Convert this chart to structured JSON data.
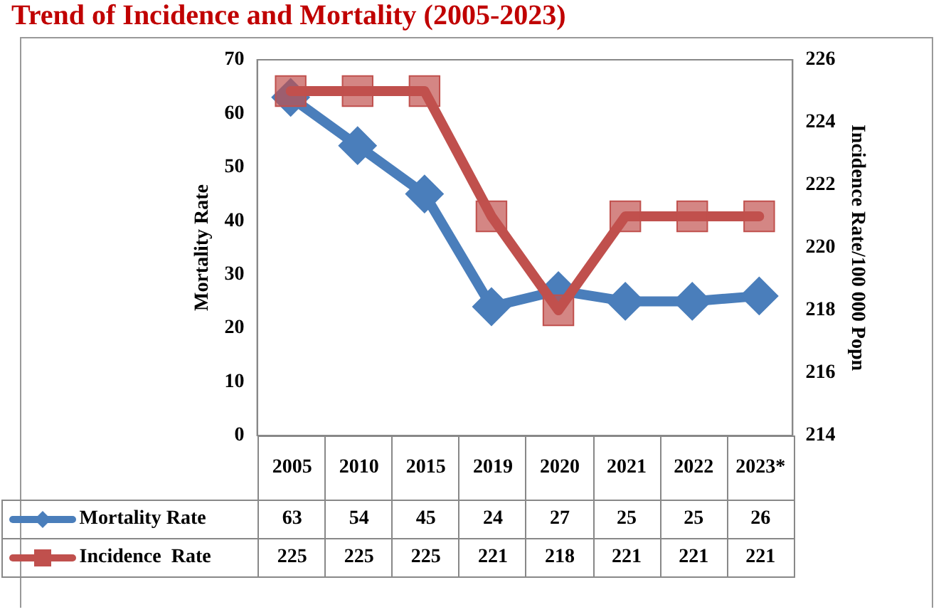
{
  "chart_data": {
    "type": "line",
    "title": "Trend of Incidence and Mortality (2005-2023)",
    "ylabel": "Mortality Rate",
    "y2label": "Incidence Rate/100 000 Popn",
    "categories": [
      "2005",
      "2010",
      "2015",
      "2019",
      "2020",
      "2021",
      "2022",
      "2023*"
    ],
    "series": [
      {
        "name": "Mortality Rate",
        "color": "#4a7ebb",
        "marker": "diamond",
        "values": [
          63,
          54,
          45,
          24,
          27,
          25,
          25,
          26
        ]
      },
      {
        "name": "Incidence  Rate",
        "color": "#c0504d",
        "marker": "square",
        "axis": "y2",
        "values": [
          225,
          225,
          225,
          221,
          218,
          221,
          221,
          221
        ]
      }
    ],
    "ylim": [
      0,
      70
    ],
    "yticks": [
      0,
      10,
      20,
      30,
      40,
      50,
      60,
      70
    ],
    "y2lim": [
      214,
      226
    ],
    "y2ticks": [
      214,
      216,
      218,
      220,
      222,
      224,
      226
    ],
    "data_labels": true,
    "legend": "bottom",
    "grid": false
  }
}
